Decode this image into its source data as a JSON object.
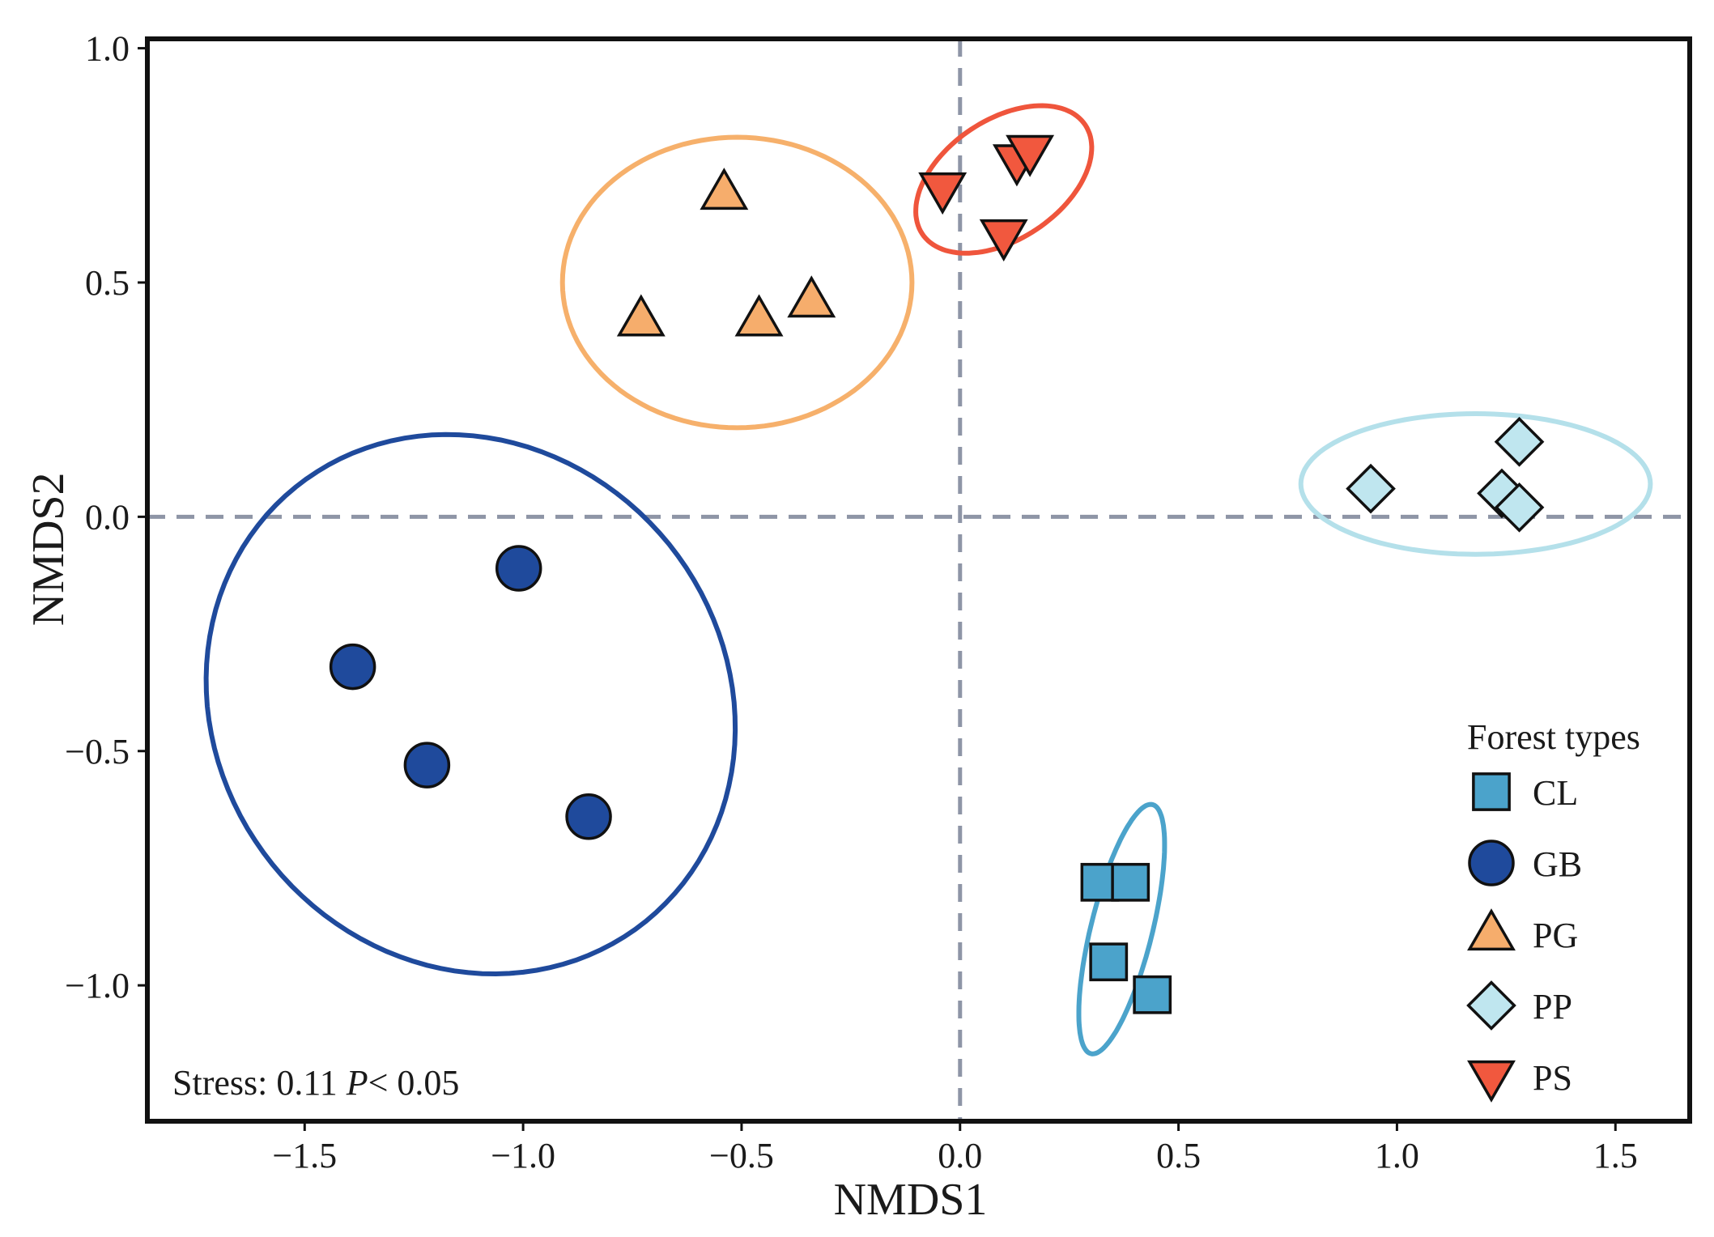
{
  "chart_data": {
    "type": "scatter",
    "title": "",
    "xlabel": "NMDS1",
    "ylabel": "NMDS2",
    "xlim": [
      -1.86,
      1.67
    ],
    "ylim": [
      -1.29,
      1.02
    ],
    "x_ticks": [
      -1.5,
      -1.0,
      -0.5,
      0.0,
      0.5,
      1.0,
      1.5
    ],
    "x_tick_labels": [
      "−1.5",
      "−1.0",
      "−0.5",
      "0.0",
      "0.5",
      "1.0",
      "1.5"
    ],
    "y_ticks": [
      1.0,
      0.5,
      0.0,
      -0.5,
      -1.0
    ],
    "y_tick_labels": [
      "1.0",
      "0.5",
      "0.0",
      "−0.5",
      "−1.0"
    ],
    "grid": false,
    "reference_lines": {
      "x": 0.0,
      "y": 0.0,
      "style": "dashed",
      "color": "#8e95a6"
    },
    "legend": {
      "title": "Forest types",
      "position": "bottom-right",
      "entries": [
        {
          "label": "CL",
          "marker": "square"
        },
        {
          "label": "GB",
          "marker": "circle"
        },
        {
          "label": "PG",
          "marker": "triangle-up"
        },
        {
          "label": "PP",
          "marker": "diamond"
        },
        {
          "label": "PS",
          "marker": "triangle-down"
        }
      ]
    },
    "annotation": {
      "stress_text": "Stress: 0.11",
      "p_symbol": "P",
      "p_rest": "< 0.05"
    },
    "series": [
      {
        "name": "CL",
        "marker": "square",
        "fill": "#4ba3cb",
        "ellipse_color": "#4ba3cb",
        "points": [
          [
            0.32,
            -0.78
          ],
          [
            0.39,
            -0.78
          ],
          [
            0.34,
            -0.95
          ],
          [
            0.44,
            -1.02
          ]
        ],
        "ellipse": {
          "cx": 0.37,
          "cy": -0.88,
          "rx": 0.275,
          "ry": 0.07,
          "angle_deg": 75
        }
      },
      {
        "name": "GB",
        "marker": "circle",
        "fill": "#1f4a9c",
        "ellipse_color": "#1f4a9c",
        "points": [
          [
            -1.01,
            -0.11
          ],
          [
            -1.39,
            -0.32
          ],
          [
            -1.22,
            -0.53
          ],
          [
            -0.85,
            -0.64
          ]
        ],
        "ellipse": {
          "cx": -1.12,
          "cy": -0.4,
          "rx": 0.62,
          "ry": 0.56,
          "angle_deg": -30
        }
      },
      {
        "name": "PG",
        "marker": "triangle-up",
        "fill": "#f6ad6c",
        "ellipse_color": "#f6b06b",
        "points": [
          [
            -0.54,
            0.69
          ],
          [
            -0.73,
            0.42
          ],
          [
            -0.46,
            0.42
          ],
          [
            -0.34,
            0.46
          ]
        ],
        "ellipse": {
          "cx": -0.51,
          "cy": 0.5,
          "rx": 0.4,
          "ry": 0.31,
          "angle_deg": 0
        }
      },
      {
        "name": "PP",
        "marker": "diamond",
        "fill": "#bfe6ef",
        "ellipse_color": "#b4e0ea",
        "points": [
          [
            0.94,
            0.06
          ],
          [
            1.28,
            0.16
          ],
          [
            1.24,
            0.05
          ],
          [
            1.28,
            0.02
          ]
        ],
        "ellipse": {
          "cx": 1.18,
          "cy": 0.07,
          "rx": 0.4,
          "ry": 0.15,
          "angle_deg": 0
        }
      },
      {
        "name": "PS",
        "marker": "triangle-down",
        "fill": "#f1583e",
        "ellipse_color": "#ef553c",
        "points": [
          [
            -0.04,
            0.7
          ],
          [
            0.13,
            0.76
          ],
          [
            0.16,
            0.78
          ],
          [
            0.1,
            0.6
          ]
        ],
        "ellipse": {
          "cx": 0.1,
          "cy": 0.72,
          "rx": 0.22,
          "ry": 0.13,
          "angle_deg": 30
        }
      }
    ]
  }
}
